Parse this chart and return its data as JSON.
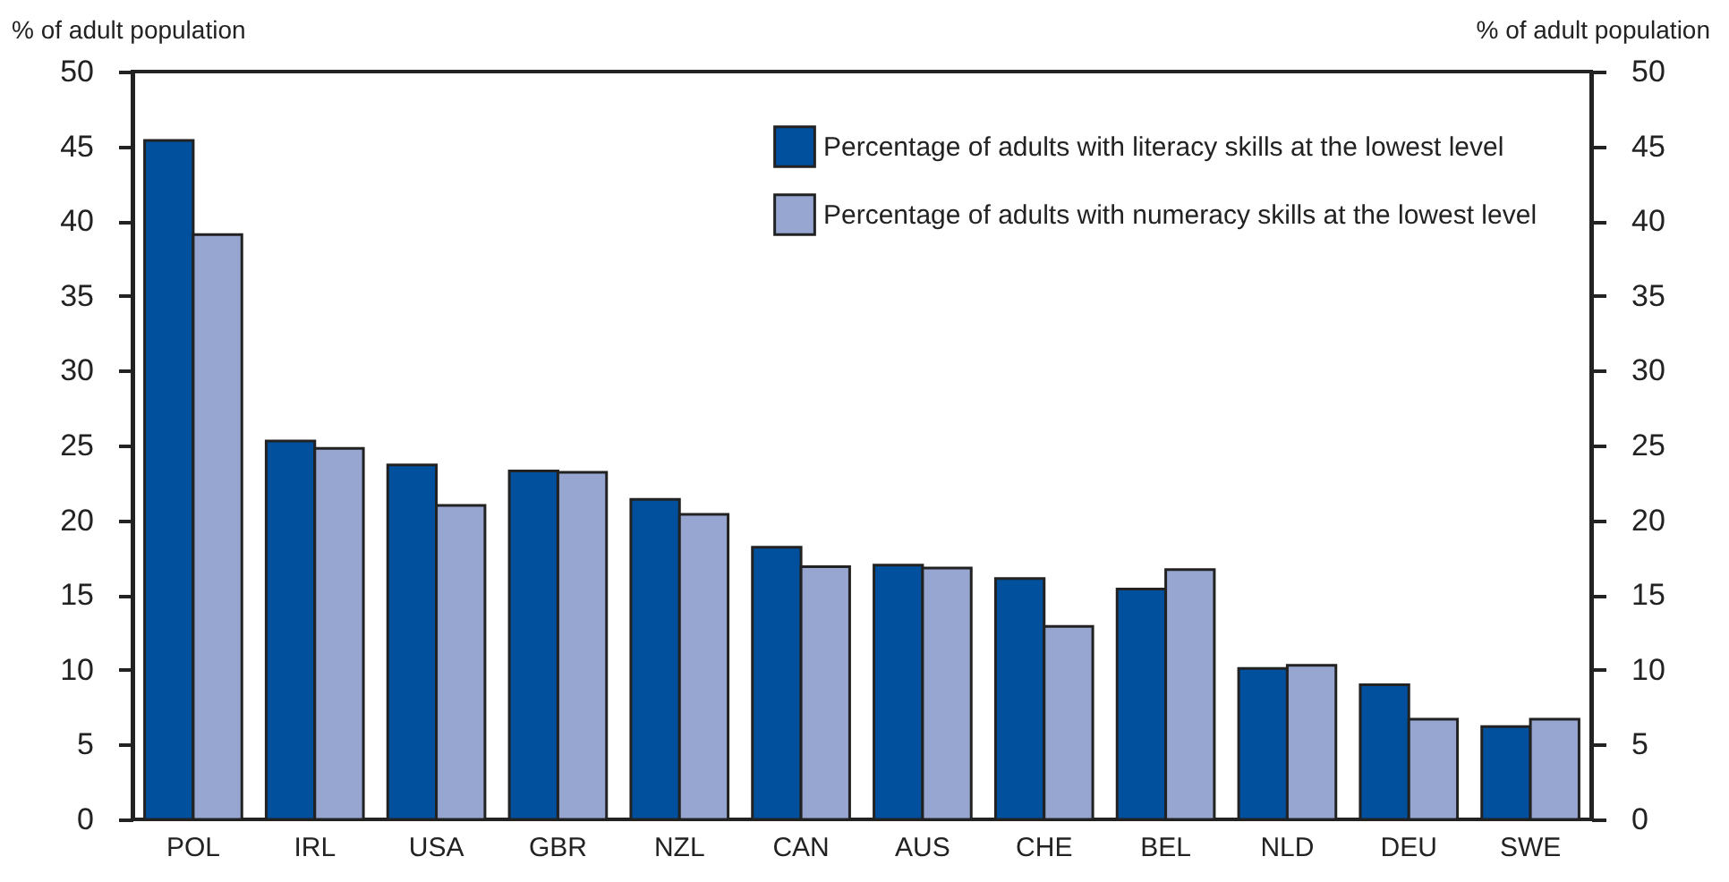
{
  "chart_data": {
    "type": "bar",
    "ylabel": "% of adult population",
    "y2label": "% of adult population",
    "categories": [
      "POL",
      "IRL",
      "USA",
      "GBR",
      "NZL",
      "CAN",
      "AUS",
      "CHE",
      "BEL",
      "NLD",
      "DEU",
      "SWE"
    ],
    "series": [
      {
        "name": "Percentage of adults with literacy skills at the lowest level",
        "color": "#00509e",
        "values": [
          45.4,
          25.3,
          23.7,
          23.3,
          21.4,
          18.2,
          17.0,
          16.1,
          15.4,
          10.1,
          9.0,
          6.2
        ]
      },
      {
        "name": "Percentage of adults with numeracy skills at the lowest level",
        "color": "#97a6d1",
        "values": [
          39.1,
          24.8,
          21.0,
          23.2,
          20.4,
          16.9,
          16.8,
          12.9,
          16.7,
          10.3,
          6.7,
          6.7
        ]
      }
    ],
    "ylim": [
      0,
      50
    ],
    "yticks": [
      0,
      5,
      10,
      15,
      20,
      25,
      30,
      35,
      40,
      45,
      50
    ],
    "y2lim": [
      0,
      50
    ],
    "y2ticks": [
      0,
      5,
      10,
      15,
      20,
      25,
      30,
      35,
      40,
      45,
      50
    ],
    "grid": false,
    "legend": "top right"
  }
}
